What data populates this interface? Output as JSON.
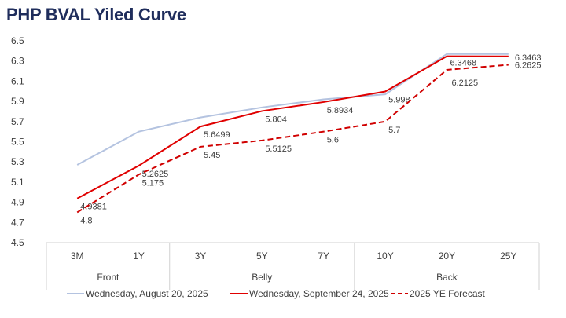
{
  "chart_data": {
    "type": "line",
    "title": "PHP BVAL Yiled Curve",
    "categories": [
      "3M",
      "1Y",
      "3Y",
      "5Y",
      "7Y",
      "10Y",
      "20Y",
      "25Y"
    ],
    "groups": [
      {
        "label": "Front",
        "span": 2
      },
      {
        "label": "Belly",
        "span": 3
      },
      {
        "label": "Back",
        "span": 3
      }
    ],
    "ylim": [
      4.5,
      6.5
    ],
    "yticks": [
      "4.5",
      "4.7",
      "4.9",
      "5.1",
      "5.3",
      "5.5",
      "5.7",
      "5.9",
      "6.1",
      "6.3",
      "6.5"
    ],
    "grid": false,
    "legend_position": "bottom",
    "series": [
      {
        "name": "Wednesday, August 20, 2025",
        "color": "#b4c3e0",
        "dash": false,
        "labels": false,
        "values": [
          5.27,
          5.6,
          5.74,
          5.84,
          5.92,
          5.97,
          6.37,
          6.37
        ]
      },
      {
        "name": "Wednesday, September 24, 2025",
        "color": "#e00000",
        "dash": false,
        "labels": true,
        "values": [
          4.9381,
          5.2625,
          5.6499,
          5.804,
          5.8934,
          5.998,
          6.3468,
          6.3463
        ],
        "value_labels": [
          "4.9381",
          "5.2625",
          "5.6499",
          "5.804",
          "5.8934",
          "5.998",
          "6.3468",
          "6.3463"
        ]
      },
      {
        "name": "2025 YE Forecast",
        "color": "#d00000",
        "dash": true,
        "labels": true,
        "values": [
          4.8,
          5.175,
          5.45,
          5.5125,
          5.6,
          5.7,
          6.2125,
          6.2625
        ],
        "value_labels": [
          "4.8",
          "5.175",
          "5.45",
          "5.5125",
          "5.6",
          "5.7",
          "6.2125",
          "6.2625"
        ]
      }
    ]
  }
}
